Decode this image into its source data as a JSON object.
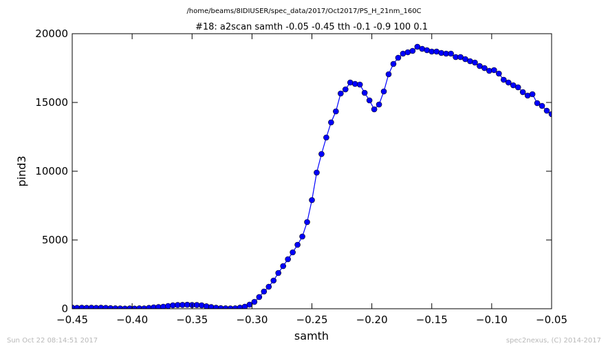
{
  "chart_data": {
    "type": "line",
    "suptitle": "/home/beams/8IDIUSER/spec_data/2017/Oct2017/PS_H_21nm_160C",
    "title": "#18: a2scan  samth -0.05 -0.45  tth -0.1 -0.9  100 0.1",
    "xlabel": "samth",
    "ylabel": "pind3",
    "xlim": [
      -0.45,
      -0.05
    ],
    "ylim": [
      0,
      20000
    ],
    "xticks": [
      -0.45,
      -0.4,
      -0.35,
      -0.3,
      -0.25,
      -0.2,
      -0.15,
      -0.1,
      -0.05
    ],
    "xtick_labels": [
      "−0.45",
      "−0.40",
      "−0.35",
      "−0.30",
      "−0.25",
      "−0.20",
      "−0.15",
      "−0.10",
      "−0.05"
    ],
    "yticks": [
      0,
      5000,
      10000,
      15000,
      20000
    ],
    "ytick_labels": [
      "0",
      "5000",
      "10000",
      "15000",
      "20000"
    ],
    "grid": false,
    "line_color": "#0000ff",
    "marker_color": "#0000ff",
    "x": [
      -0.45,
      -0.446,
      -0.442,
      -0.438,
      -0.434,
      -0.43,
      -0.426,
      -0.422,
      -0.418,
      -0.414,
      -0.41,
      -0.406,
      -0.402,
      -0.398,
      -0.394,
      -0.39,
      -0.386,
      -0.382,
      -0.378,
      -0.374,
      -0.37,
      -0.366,
      -0.362,
      -0.358,
      -0.354,
      -0.35,
      -0.346,
      -0.342,
      -0.338,
      -0.334,
      -0.33,
      -0.326,
      -0.322,
      -0.318,
      -0.314,
      -0.31,
      -0.306,
      -0.302,
      -0.298,
      -0.294,
      -0.29,
      -0.286,
      -0.282,
      -0.278,
      -0.274,
      -0.27,
      -0.266,
      -0.262,
      -0.258,
      -0.254,
      -0.25,
      -0.246,
      -0.242,
      -0.238,
      -0.234,
      -0.23,
      -0.226,
      -0.222,
      -0.218,
      -0.214,
      -0.21,
      -0.206,
      -0.202,
      -0.198,
      -0.194,
      -0.19,
      -0.186,
      -0.182,
      -0.178,
      -0.174,
      -0.17,
      -0.166,
      -0.162,
      -0.158,
      -0.154,
      -0.15,
      -0.146,
      -0.142,
      -0.138,
      -0.134,
      -0.13,
      -0.126,
      -0.122,
      -0.118,
      -0.114,
      -0.11,
      -0.106,
      -0.102,
      -0.098,
      -0.094,
      -0.09,
      -0.086,
      -0.082,
      -0.078,
      -0.074,
      -0.07,
      -0.066,
      -0.062,
      -0.058,
      -0.054,
      -0.05
    ],
    "y": [
      80,
      60,
      70,
      60,
      70,
      60,
      70,
      60,
      40,
      30,
      20,
      10,
      20,
      10,
      30,
      20,
      60,
      100,
      120,
      150,
      200,
      250,
      270,
      280,
      290,
      270,
      270,
      250,
      180,
      120,
      70,
      40,
      30,
      20,
      30,
      80,
      150,
      300,
      500,
      850,
      1250,
      1600,
      2050,
      2600,
      3100,
      3600,
      4100,
      4650,
      5250,
      6300,
      7900,
      9900,
      11250,
      12450,
      13550,
      14350,
      15650,
      15950,
      16450,
      16350,
      16300,
      15700,
      15150,
      14500,
      14850,
      15800,
      17050,
      17800,
      18250,
      18550,
      18650,
      18750,
      19050,
      18900,
      18800,
      18700,
      18700,
      18600,
      18550,
      18550,
      18300,
      18300,
      18150,
      18000,
      17900,
      17650,
      17500,
      17300,
      17350,
      17100,
      16650,
      16450,
      16250,
      16100,
      15750,
      15500,
      15600,
      14950,
      14750,
      14400,
      14150
    ]
  },
  "footer": {
    "timestamp": "Sun Oct 22 08:14:51 2017",
    "credit": "spec2nexus, (C) 2014-2017"
  }
}
